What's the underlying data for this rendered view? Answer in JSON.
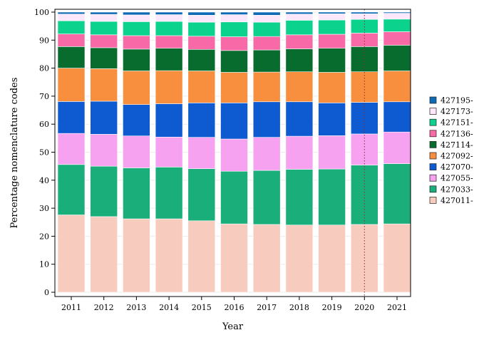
{
  "chart_data": {
    "type": "bar",
    "stacked": true,
    "title": "",
    "xlabel": "Year",
    "ylabel": "Percentage nomenclature codes",
    "ylim": [
      0,
      100
    ],
    "yticks": [
      0,
      10,
      20,
      30,
      40,
      50,
      60,
      70,
      80,
      90,
      100
    ],
    "grid": true,
    "legend_position": "right",
    "reference_line": {
      "type": "vertical",
      "x": "2020",
      "style": "dotted",
      "color": "#8b2e2e"
    },
    "categories": [
      "2011",
      "2012",
      "2013",
      "2014",
      "2015",
      "2016",
      "2017",
      "2018",
      "2019",
      "2020",
      "2021"
    ],
    "series": [
      {
        "name": "427011-",
        "color": "#f7cbbd",
        "values": [
          27.6,
          27.0,
          26.2,
          26.2,
          25.5,
          24.4,
          24.2,
          24.0,
          24.0,
          24.2,
          24.4
        ]
      },
      {
        "name": "427033-",
        "color": "#1aae7b",
        "values": [
          18.0,
          18.0,
          18.2,
          18.5,
          18.6,
          18.8,
          19.3,
          19.9,
          20.0,
          21.2,
          21.5
        ]
      },
      {
        "name": "427055-",
        "color": "#f7a1f1",
        "values": [
          11.1,
          11.4,
          11.4,
          10.7,
          11.2,
          11.5,
          11.8,
          11.8,
          11.9,
          11.1,
          11.3
        ]
      },
      {
        "name": "427070-",
        "color": "#0e5ad0",
        "values": [
          11.4,
          11.8,
          11.2,
          11.9,
          12.3,
          12.9,
          12.7,
          12.3,
          11.7,
          11.3,
          10.8
        ]
      },
      {
        "name": "427092-",
        "color": "#f78f3e",
        "values": [
          11.9,
          11.6,
          12.0,
          11.8,
          11.4,
          10.9,
          10.6,
          10.7,
          10.9,
          10.9,
          11.0
        ]
      },
      {
        "name": "427114-",
        "color": "#086c2e",
        "values": [
          7.7,
          7.5,
          7.8,
          8.0,
          7.7,
          7.8,
          7.9,
          8.2,
          8.6,
          9.0,
          9.2
        ]
      },
      {
        "name": "427136-",
        "color": "#f76aa7",
        "values": [
          4.5,
          4.6,
          4.8,
          4.5,
          4.7,
          4.9,
          4.8,
          5.0,
          5.0,
          4.8,
          4.8
        ]
      },
      {
        "name": "427151-",
        "color": "#0bd38d",
        "values": [
          4.7,
          4.8,
          5.0,
          5.1,
          5.0,
          5.3,
          5.1,
          5.2,
          5.1,
          4.9,
          4.5
        ]
      },
      {
        "name": "427173-",
        "color": "#fde8fb",
        "values": [
          2.4,
          2.5,
          2.4,
          2.4,
          2.5,
          2.6,
          2.5,
          2.2,
          2.2,
          2.0,
          2.1
        ]
      },
      {
        "name": "427195-",
        "color": "#0e6ab5",
        "values": [
          0.7,
          0.8,
          1.0,
          0.9,
          1.1,
          0.9,
          1.1,
          0.7,
          0.6,
          0.6,
          0.4
        ]
      }
    ]
  }
}
